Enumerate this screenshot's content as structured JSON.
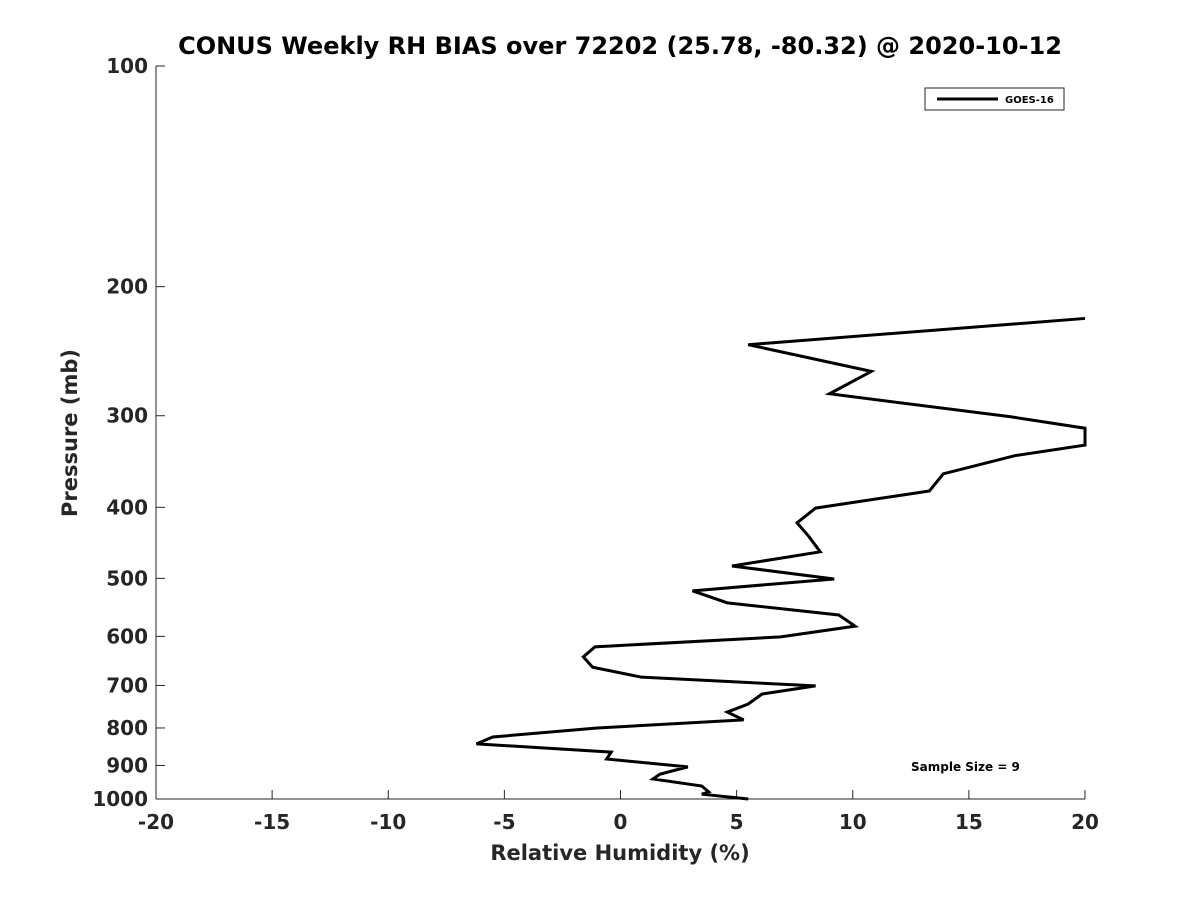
{
  "chart_data": {
    "type": "line",
    "title": "CONUS Weekly RH BIAS over 72202 (25.78, -80.32) @ 2020-10-12",
    "xlabel": "Relative Humidity (%)",
    "ylabel": "Pressure (mb)",
    "xlim": [
      -20,
      20
    ],
    "ylim": [
      100,
      1000
    ],
    "yscale": "log",
    "y_reversed": true,
    "xticks": [
      "-20",
      "-15",
      "-10",
      "-5",
      "0",
      "5",
      "10",
      "15",
      "20"
    ],
    "xtick_values": [
      -20,
      -15,
      -10,
      -5,
      0,
      5,
      10,
      15,
      20
    ],
    "yticks": [
      "100",
      "200",
      "300",
      "400",
      "500",
      "600",
      "700",
      "800",
      "900",
      "1000"
    ],
    "ytick_values": [
      100,
      200,
      300,
      400,
      500,
      600,
      700,
      800,
      900,
      1000
    ],
    "grid": false,
    "legend_position": "top-right",
    "annotation": "Sample Size = 9",
    "series": [
      {
        "name": "GOES-16",
        "color": "#000000",
        "x": [
          20,
          5.5,
          10.8,
          9.0,
          16.8,
          20,
          20,
          17.0,
          13.9,
          13.3,
          8.4,
          7.6,
          8.1,
          8.6,
          4.8,
          9.2,
          3.1,
          4.6,
          9.4,
          10.1,
          6.9,
          -1.1,
          -1.6,
          -1.2,
          0.9,
          8.4,
          6.1,
          5.5,
          4.6,
          5.3,
          -1.0,
          -5.5,
          -6.2,
          -0.4,
          -0.6,
          2.9,
          1.7,
          1.4,
          3.5,
          3.8,
          3.5,
          5.5
        ],
        "pressure": [
          221,
          240,
          261,
          280,
          301,
          312,
          329,
          340,
          360,
          380,
          401,
          420,
          438,
          460,
          481,
          501,
          520,
          540,
          561,
          581,
          601,
          620,
          640,
          661,
          682,
          701,
          719,
          742,
          761,
          780,
          800,
          823,
          841,
          863,
          882,
          904,
          925,
          939,
          960,
          978,
          985,
          1000
        ]
      }
    ]
  }
}
